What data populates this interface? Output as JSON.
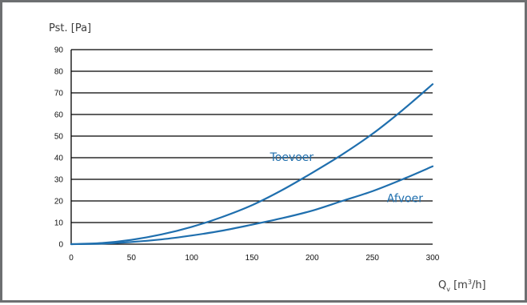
{
  "chart_data": {
    "type": "line",
    "ylabel": "Pst. [Pa]",
    "xlabel": {
      "main": "Q",
      "sub": "v",
      "unit_pre": " [m",
      "sup": "3",
      "unit_post": "/h]"
    },
    "xlim": [
      0,
      300
    ],
    "ylim": [
      0,
      90
    ],
    "x_ticks": [
      0,
      50,
      100,
      150,
      200,
      250,
      300
    ],
    "y_ticks": [
      0,
      10,
      20,
      30,
      40,
      50,
      60,
      70,
      80,
      90
    ],
    "grid": "horizontal",
    "series": [
      {
        "name": "Toevoer",
        "color": "#1f6fae",
        "x": [
          0,
          25,
          50,
          75,
          100,
          125,
          150,
          175,
          200,
          225,
          250,
          275,
          300
        ],
        "y": [
          0,
          0.5,
          2,
          4.5,
          8,
          12.5,
          18,
          25,
          33,
          41.5,
          51,
          62,
          74
        ]
      },
      {
        "name": "Afvoer",
        "color": "#1f6fae",
        "x": [
          0,
          25,
          50,
          75,
          100,
          125,
          150,
          175,
          200,
          225,
          250,
          275,
          300
        ],
        "y": [
          0,
          0.2,
          1,
          2.2,
          4,
          6.2,
          9,
          12,
          15.5,
          20,
          24.5,
          30,
          36
        ]
      }
    ]
  }
}
